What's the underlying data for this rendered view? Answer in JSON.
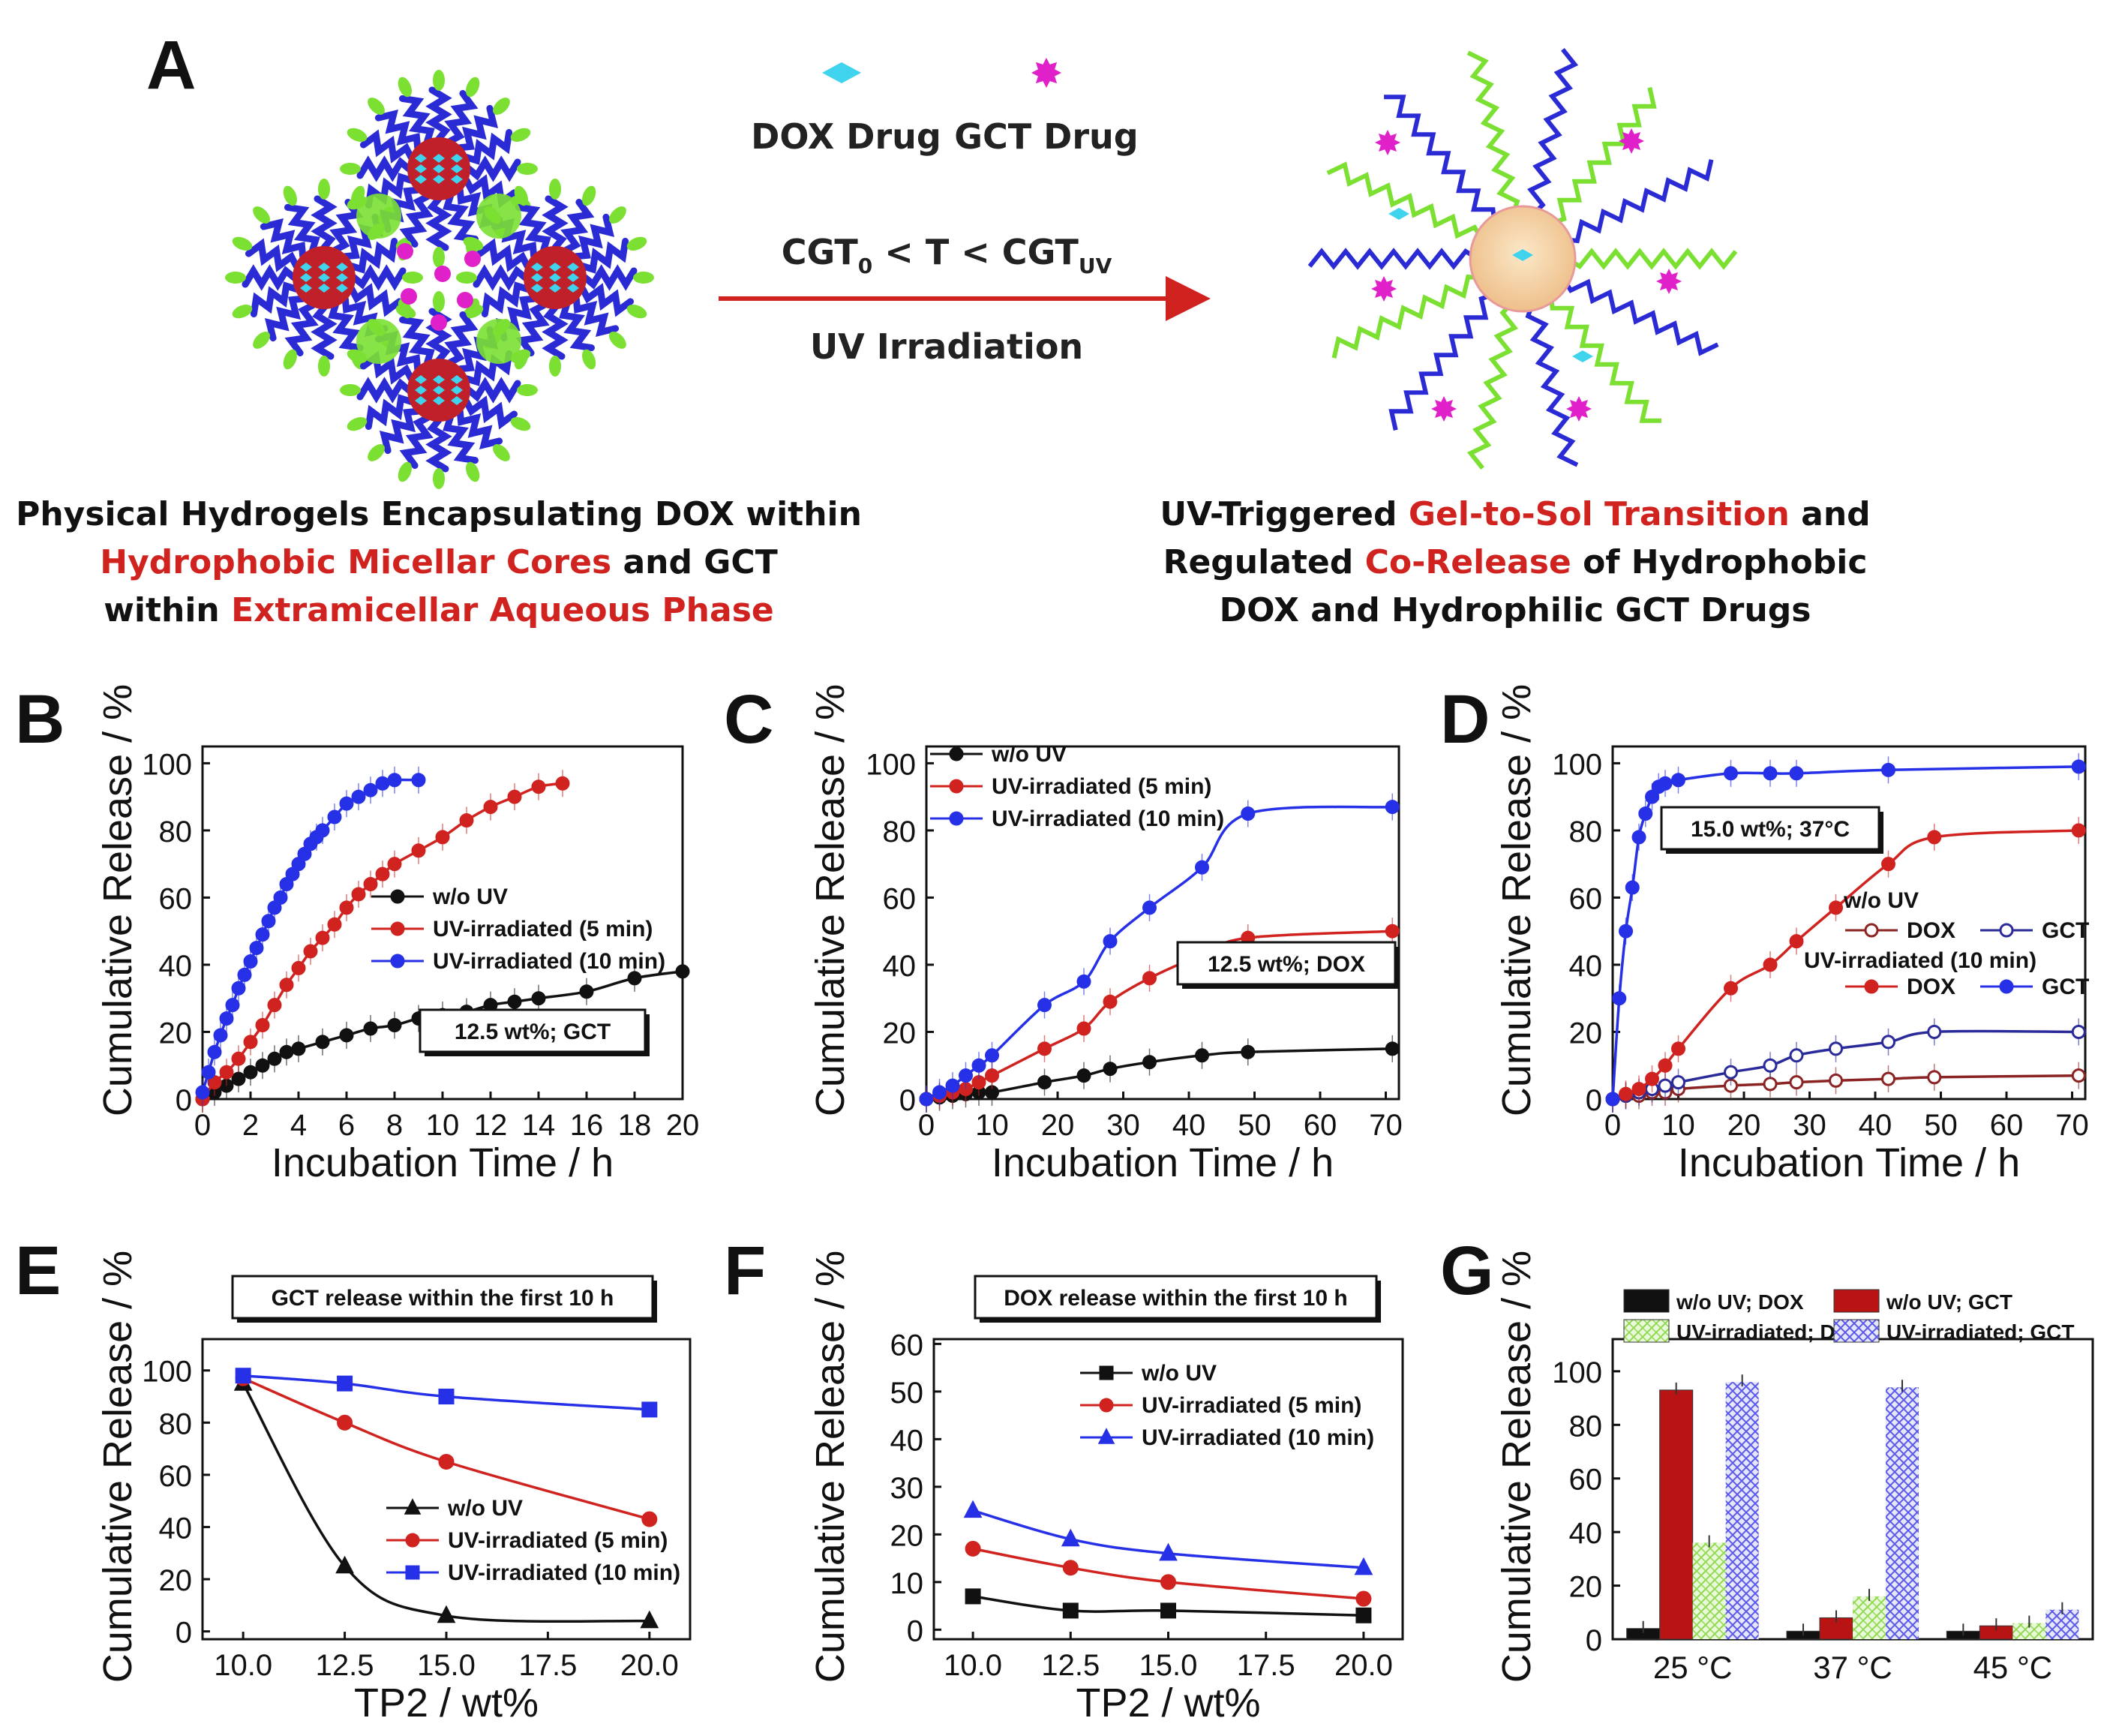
{
  "colors": {
    "black": "#111111",
    "red": "#d0231f",
    "blue": "#2630e6",
    "dox_fill": "#3fd3ee",
    "gct_fill": "#e020c8",
    "core": "#c0202a",
    "shell_blue": "#2b2bd6",
    "shell_green": "#7be032",
    "arrow": "#d0231f",
    "g_black": "#111111",
    "g_red": "#b81414",
    "g_green_hatch": "#9ae061",
    "g_blue_hatch": "#5a5ae6"
  },
  "panel_a": {
    "letter": "A",
    "legend_dox": "DOX Drug",
    "legend_gct": "GCT Drug",
    "condition_main": "CGT",
    "condition_sub0": "0",
    "condition_mid": " < T < CGT",
    "condition_subuv": "UV",
    "uv_label": "UV Irradiation",
    "left_caption": [
      [
        {
          "t": "Physical Hydrogels Encapsulating DOX within",
          "c": "k"
        }
      ],
      [
        {
          "t": "Hydrophobic Micellar Cores",
          "c": "r"
        },
        {
          "t": " and GCT",
          "c": "k"
        }
      ],
      [
        {
          "t": "within ",
          "c": "k"
        },
        {
          "t": "Extramicellar Aqueous Phase",
          "c": "r"
        }
      ]
    ],
    "right_caption": [
      [
        {
          "t": "UV-Triggered ",
          "c": "k"
        },
        {
          "t": "Gel-to-Sol Transition",
          "c": "r"
        },
        {
          "t": " and",
          "c": "k"
        }
      ],
      [
        {
          "t": "Regulated ",
          "c": "k"
        },
        {
          "t": "Co-Release",
          "c": "r"
        },
        {
          "t": " of Hydrophobic",
          "c": "k"
        }
      ],
      [
        {
          "t": "DOX and Hydrophilic GCT Drugs",
          "c": "k"
        }
      ]
    ]
  },
  "chart_data": [
    {
      "id": "B",
      "letter": "B",
      "type": "line",
      "xlabel": "Incubation Time / h",
      "ylabel": "Cumulative Release / %",
      "xlim": [
        0,
        20
      ],
      "ylim": [
        0,
        105
      ],
      "xticks": [
        0,
        2,
        4,
        6,
        8,
        10,
        12,
        14,
        16,
        18,
        20
      ],
      "yticks": [
        0,
        20,
        40,
        60,
        80,
        100
      ],
      "annotation": "12.5 wt%; GCT",
      "series": [
        {
          "name": "w/o UV",
          "color": "#111111",
          "marker": "circle",
          "filled": true,
          "x": [
            0,
            0.5,
            1,
            1.5,
            2,
            2.5,
            3,
            3.5,
            4,
            5,
            6,
            7,
            8,
            9,
            10,
            11,
            12,
            13,
            14,
            16,
            18,
            20
          ],
          "y": [
            0,
            2,
            4,
            6,
            8,
            10,
            12,
            14,
            15,
            17,
            19,
            21,
            22,
            24,
            25,
            26,
            28,
            29,
            30,
            32,
            36,
            38
          ]
        },
        {
          "name": "UV-irradiated (5 min)",
          "color": "#d0231f",
          "marker": "circle",
          "filled": true,
          "x": [
            0,
            0.5,
            1,
            1.5,
            2,
            2.5,
            3,
            3.5,
            4,
            4.5,
            5,
            5.5,
            6,
            6.5,
            7,
            7.5,
            8,
            9,
            10,
            11,
            12,
            13,
            14,
            15
          ],
          "y": [
            0,
            5,
            8,
            12,
            17,
            22,
            28,
            34,
            39,
            44,
            48,
            52,
            57,
            61,
            64,
            67,
            70,
            74,
            78,
            83,
            87,
            90,
            93,
            94
          ]
        },
        {
          "name": "UV-irradiated (10 min)",
          "color": "#2630e6",
          "marker": "circle",
          "filled": true,
          "x": [
            0,
            0.25,
            0.5,
            0.75,
            1,
            1.25,
            1.5,
            1.75,
            2,
            2.25,
            2.5,
            2.75,
            3,
            3.25,
            3.5,
            3.75,
            4,
            4.25,
            4.5,
            4.75,
            5,
            5.5,
            6,
            6.5,
            7,
            7.5,
            8,
            9
          ],
          "y": [
            2,
            8,
            14,
            19,
            24,
            28,
            33,
            37,
            41,
            45,
            49,
            53,
            57,
            60,
            64,
            67,
            70,
            73,
            76,
            78,
            80,
            84,
            88,
            90,
            92,
            94,
            95,
            95
          ]
        }
      ]
    },
    {
      "id": "C",
      "letter": "C",
      "type": "line",
      "xlabel": "Incubation Time / h",
      "ylabel": "Cumulative Release / %",
      "xlim": [
        0,
        72
      ],
      "ylim": [
        0,
        105
      ],
      "xticks": [
        0,
        10,
        20,
        30,
        40,
        50,
        60,
        70
      ],
      "yticks": [
        0,
        20,
        40,
        60,
        80,
        100
      ],
      "annotation": "12.5 wt%; DOX",
      "series": [
        {
          "name": "w/o UV",
          "color": "#111111",
          "marker": "circle",
          "filled": true,
          "x": [
            0,
            2,
            4,
            6,
            8,
            10,
            18,
            24,
            28,
            34,
            42,
            49,
            71
          ],
          "y": [
            0,
            0.5,
            1,
            1.5,
            2,
            2,
            5,
            7,
            9,
            11,
            13,
            14,
            15
          ]
        },
        {
          "name": "UV-irradiated (5 min)",
          "color": "#d0231f",
          "marker": "circle",
          "filled": true,
          "x": [
            0,
            2,
            4,
            6,
            8,
            10,
            18,
            24,
            28,
            34,
            42,
            49,
            71
          ],
          "y": [
            0,
            1,
            2,
            3,
            5,
            7,
            15,
            21,
            29,
            36,
            43,
            48,
            50
          ]
        },
        {
          "name": "UV-irradiated (10 min)",
          "color": "#2630e6",
          "marker": "circle",
          "filled": true,
          "x": [
            0,
            2,
            4,
            6,
            8,
            10,
            18,
            24,
            28,
            34,
            42,
            49,
            71
          ],
          "y": [
            0,
            2,
            4,
            7,
            10,
            13,
            28,
            35,
            47,
            57,
            69,
            85,
            87
          ]
        }
      ]
    },
    {
      "id": "D",
      "letter": "D",
      "type": "line",
      "xlabel": "Incubation Time / h",
      "ylabel": "Cumulative Release / %",
      "xlim": [
        0,
        72
      ],
      "ylim": [
        0,
        105
      ],
      "xticks": [
        0,
        10,
        20,
        30,
        40,
        50,
        60,
        70
      ],
      "yticks": [
        0,
        20,
        40,
        60,
        80,
        100
      ],
      "annotation": "15.0 wt%; 37°C",
      "legend_head1": "w/o UV",
      "legend_head2": "UV-irradiated (10 min)",
      "series": [
        {
          "name": "DOX",
          "group": "w/o UV",
          "color": "#8b2323",
          "marker": "circle",
          "filled": false,
          "x": [
            0,
            2,
            4,
            6,
            8,
            10,
            18,
            24,
            28,
            34,
            42,
            49,
            71
          ],
          "y": [
            0,
            1,
            1,
            2,
            2,
            3,
            4,
            4.5,
            5,
            5.5,
            6,
            6.5,
            7
          ]
        },
        {
          "name": "GCT",
          "group": "w/o UV",
          "color": "#2a2a9a",
          "marker": "circle",
          "filled": false,
          "x": [
            0,
            2,
            4,
            6,
            8,
            10,
            18,
            24,
            28,
            34,
            42,
            49,
            71
          ],
          "y": [
            0,
            1,
            2,
            3,
            4,
            5,
            8,
            10,
            13,
            15,
            17,
            20,
            20
          ]
        },
        {
          "name": "DOX",
          "group": "UV-irradiated (10 min)",
          "color": "#d0231f",
          "marker": "circle",
          "filled": true,
          "x": [
            0,
            2,
            4,
            6,
            8,
            10,
            18,
            24,
            28,
            34,
            42,
            49,
            71
          ],
          "y": [
            0,
            1.5,
            3,
            6,
            10,
            15,
            33,
            40,
            47,
            57,
            70,
            78,
            80
          ]
        },
        {
          "name": "GCT",
          "group": "UV-irradiated (10 min)",
          "color": "#2630e6",
          "marker": "circle",
          "filled": true,
          "x": [
            0,
            1,
            2,
            3,
            4,
            5,
            6,
            7,
            8,
            10,
            18,
            24,
            28,
            42,
            71
          ],
          "y": [
            0,
            30,
            50,
            63,
            78,
            85,
            90,
            93,
            94,
            95,
            97,
            97,
            97,
            98,
            99
          ]
        }
      ]
    },
    {
      "id": "E",
      "letter": "E",
      "type": "line",
      "xlabel": "TP2 / wt%",
      "ylabel": "Cumulative Release / %",
      "xlim": [
        9,
        21
      ],
      "ylim": [
        -3,
        112
      ],
      "xticks": [
        10.0,
        12.5,
        15.0,
        17.5,
        20.0
      ],
      "xtick_labels": [
        "10.0",
        "12.5",
        "15.0",
        "17.5",
        "20.0"
      ],
      "yticks": [
        0,
        20,
        40,
        60,
        80,
        100
      ],
      "annotation": "GCT release within the first 10 h",
      "series": [
        {
          "name": "w/o UV",
          "color": "#111111",
          "marker": "triangle",
          "filled": true,
          "x": [
            10,
            12.5,
            15,
            20
          ],
          "y": [
            95,
            25,
            6,
            4
          ]
        },
        {
          "name": "UV-irradiated (5 min)",
          "color": "#d0231f",
          "marker": "circle",
          "filled": true,
          "x": [
            10,
            12.5,
            15,
            20
          ],
          "y": [
            97,
            80,
            65,
            43
          ]
        },
        {
          "name": "UV-irradiated (10 min)",
          "color": "#2630e6",
          "marker": "square",
          "filled": true,
          "x": [
            10,
            12.5,
            15,
            20
          ],
          "y": [
            98,
            95,
            90,
            85
          ]
        }
      ]
    },
    {
      "id": "F",
      "letter": "F",
      "type": "line",
      "xlabel": "TP2 / wt%",
      "ylabel": "Cumulative Release / %",
      "xlim": [
        9,
        21
      ],
      "ylim": [
        -2,
        61
      ],
      "xticks": [
        10.0,
        12.5,
        15.0,
        17.5,
        20.0
      ],
      "xtick_labels": [
        "10.0",
        "12.5",
        "15.0",
        "17.5",
        "20.0"
      ],
      "yticks": [
        0,
        10,
        20,
        30,
        40,
        50,
        60
      ],
      "annotation": "DOX release within the first 10 h",
      "series": [
        {
          "name": "w/o UV",
          "color": "#111111",
          "marker": "square",
          "filled": true,
          "x": [
            10,
            12.5,
            15,
            20
          ],
          "y": [
            7,
            4,
            4,
            3
          ]
        },
        {
          "name": "UV-irradiated (5 min)",
          "color": "#d0231f",
          "marker": "circle",
          "filled": true,
          "x": [
            10,
            12.5,
            15,
            20
          ],
          "y": [
            17,
            13,
            10,
            6.5
          ]
        },
        {
          "name": "UV-irradiated (10 min)",
          "color": "#2630e6",
          "marker": "triangle",
          "filled": true,
          "x": [
            10,
            12.5,
            15,
            20
          ],
          "y": [
            25,
            19,
            16,
            13
          ]
        }
      ]
    },
    {
      "id": "G",
      "letter": "G",
      "type": "bar",
      "ylabel": "Cumulative Release / %",
      "ylim": [
        0,
        112
      ],
      "yticks": [
        0,
        20,
        40,
        60,
        80,
        100
      ],
      "categories": [
        "25 °C",
        "37 °C",
        "45 °C"
      ],
      "series": [
        {
          "name": "w/o UV; DOX",
          "color": "#111111",
          "pattern": "solid",
          "values": [
            4,
            3,
            3
          ]
        },
        {
          "name": "w/o UV; GCT",
          "color": "#b81414",
          "pattern": "solid",
          "values": [
            93,
            8,
            5
          ]
        },
        {
          "name": "UV-irradiated; DOX",
          "color": "#9ae061",
          "pattern": "hatch",
          "values": [
            36,
            16,
            6
          ]
        },
        {
          "name": "UV-irradiated; GCT",
          "color": "#5a5ae6",
          "pattern": "hatch",
          "values": [
            96,
            94,
            11
          ]
        }
      ]
    }
  ]
}
